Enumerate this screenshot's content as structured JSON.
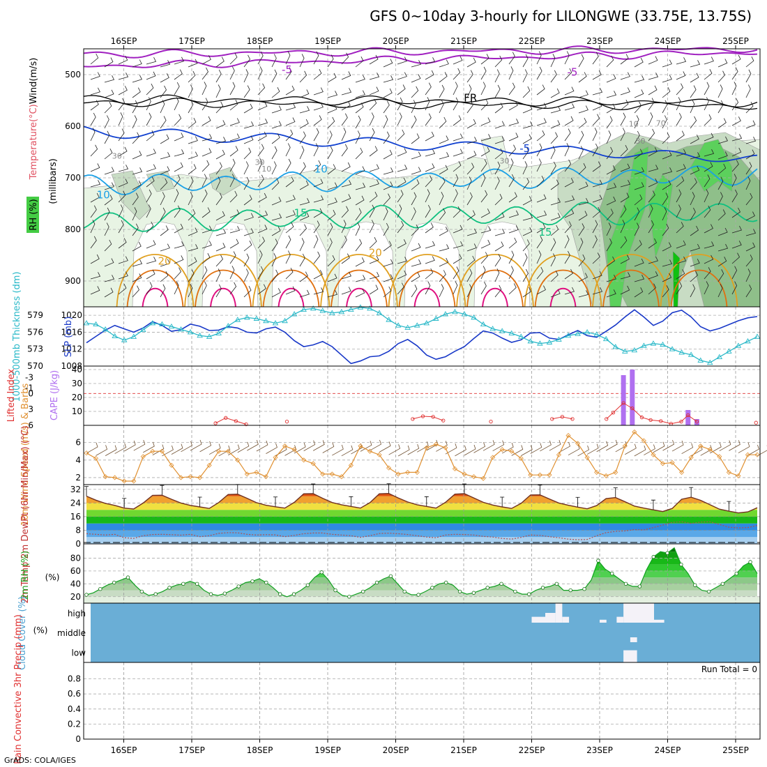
{
  "title": "GFS 0~10day 3-hourly for LILONGWE (33.75E, 13.75S)",
  "footer": "GrADS: COLA/IGES",
  "run_total_label": "Run Total = 0",
  "colors": {
    "purple": "#a020c0",
    "black": "#000000",
    "blue": "#1040d0",
    "lightblue": "#1aa0e6",
    "green": "#10c080",
    "orange": "#e0a020",
    "darkorange": "#e07010",
    "magenta": "#e01080",
    "cyan": "#28b8c8",
    "slp": "#1838c8",
    "cape": "#b070f0",
    "li": "#e03030",
    "windline": "#e09030",
    "barb": "#705030",
    "rhgreen": "#20c020",
    "cloudbg": "#6aaed6"
  },
  "chart_data": [
    {
      "type": "contour",
      "id": "upper-air",
      "xlabel_dates": [
        "16SEP",
        "17SEP",
        "18SEP",
        "19SEP",
        "20SEP",
        "21SEP",
        "22SEP",
        "23SEP",
        "24SEP",
        "25SEP"
      ],
      "ylabel": "(millibars)",
      "ylabel_left": [
        "Temperature",
        "(°C)",
        "Wind",
        "(m/s)"
      ],
      "rh_label": "RH (%)",
      "yticks": [
        500,
        600,
        700,
        800,
        900
      ],
      "ylim": [
        450,
        950
      ],
      "contour_labels": [
        {
          "text": "-5",
          "day": 2.4,
          "p": 497,
          "color": "purple"
        },
        {
          "text": "-5",
          "day": 6.6,
          "p": 502,
          "color": "purple"
        },
        {
          "text": "FR",
          "day": 5.1,
          "p": 552,
          "color": "black"
        },
        {
          "text": "-5",
          "day": 5.9,
          "p": 650,
          "color": "blue"
        },
        {
          "text": "10",
          "day": -0.3,
          "p": 740,
          "color": "lightblue"
        },
        {
          "text": "10",
          "day": 2.9,
          "p": 690,
          "color": "lightblue"
        },
        {
          "text": "15",
          "day": 2.6,
          "p": 775,
          "color": "green"
        },
        {
          "text": "15",
          "day": 6.2,
          "p": 812,
          "color": "green"
        },
        {
          "text": "20",
          "day": 0.6,
          "p": 868,
          "color": "orange"
        },
        {
          "text": "20",
          "day": 3.7,
          "p": 852,
          "color": "orange"
        },
        {
          "text": "30",
          "day": -0.1,
          "p": 663,
          "color": "gray"
        },
        {
          "text": "10",
          "day": 2.1,
          "p": 688,
          "color": "gray"
        },
        {
          "text": "30",
          "day": 2.0,
          "p": 675,
          "color": "gray"
        },
        {
          "text": "30",
          "day": 5.6,
          "p": 672,
          "color": "gray"
        },
        {
          "text": "10",
          "day": 7.5,
          "p": 601,
          "color": "gray"
        },
        {
          "text": "30",
          "day": 7.6,
          "p": 634,
          "color": "gray"
        },
        {
          "text": "70",
          "day": 7.9,
          "p": 599,
          "color": "gray"
        }
      ]
    },
    {
      "type": "line",
      "id": "thickness-slp",
      "ylabel_left": "1000-500mb Thickness (dm)",
      "ylabel_right": "SLP (mb)",
      "thickness_ticks": [
        570,
        573,
        576,
        579
      ],
      "slp_ticks": [
        1008,
        1012,
        1016,
        1020
      ],
      "thickness_lim": [
        570,
        580.5
      ],
      "slp_lim": [
        1008,
        1022
      ],
      "slp": [
        1013.5,
        1015,
        1016.5,
        1017.6,
        1016.8,
        1016,
        1017,
        1018.5,
        1017.6,
        1016.2,
        1016.6,
        1017.9,
        1017.4,
        1016.4,
        1016.5,
        1017.3,
        1017,
        1016,
        1015.8,
        1016.8,
        1017.2,
        1016,
        1014,
        1012.6,
        1013,
        1013.8,
        1012.6,
        1010.6,
        1008.6,
        1009.2,
        1010.2,
        1010.4,
        1011.5,
        1013.3,
        1014.3,
        1012.8,
        1010.6,
        1009.6,
        1010.2,
        1011.5,
        1012.6,
        1014.5,
        1016.3,
        1015.8,
        1014.6,
        1013.6,
        1014.2,
        1015.8,
        1015.9,
        1014.6,
        1014.3,
        1015.4,
        1016.4,
        1015.2,
        1014.8,
        1016.2,
        1017.7,
        1019.6,
        1021.3,
        1019.6,
        1017.6,
        1018.6,
        1020.6,
        1021.2,
        1019.6,
        1017.3,
        1016.3,
        1016.9,
        1017.8,
        1018.7,
        1019.4,
        1019.7
      ],
      "thickness": [
        577.6,
        577.4,
        576.5,
        575.3,
        574.6,
        575.2,
        576.4,
        577.6,
        577.4,
        577,
        576.5,
        576,
        575.4,
        575.2,
        575.8,
        577.1,
        578.2,
        578.6,
        578.4,
        578,
        577.6,
        578,
        579.2,
        580,
        580.2,
        579.8,
        579.4,
        579.6,
        580,
        580.4,
        580.2,
        579.4,
        578.2,
        577.2,
        576.8,
        577.2,
        577.6,
        578.4,
        579.2,
        579.6,
        579.2,
        578.6,
        577.4,
        576.6,
        576.2,
        575.8,
        575.2,
        574.4,
        574,
        574.2,
        574.7,
        575.4,
        575.7,
        576,
        575.6,
        574.8,
        573.4,
        572.6,
        572.8,
        573.6,
        574,
        573.8,
        573,
        572.4,
        572,
        571,
        570.6,
        571.6,
        572.6,
        573.6,
        574.4,
        575.2
      ]
    },
    {
      "type": "bar",
      "id": "cape-li",
      "ylabel_left": "Lifted Index",
      "ylabel_right": "CAPE (J/kg)",
      "li_ticks": [
        "-3",
        "-1",
        "0",
        "3",
        "6"
      ],
      "cape_ticks": [
        10,
        20,
        30,
        40
      ],
      "cape_lim": [
        0,
        40
      ],
      "li_lim": [
        -4.5,
        6
      ],
      "li_zero_line": 0,
      "cape_bars": [
        {
          "day": 7.35,
          "value": 36
        },
        {
          "day": 7.48,
          "value": 40
        },
        {
          "day": 8.3,
          "value": 11
        },
        {
          "day": 8.43,
          "value": 4.5
        }
      ],
      "li_points": [
        {
          "day": 1.35,
          "value": 5.6
        },
        {
          "day": 1.5,
          "value": 4.6
        },
        {
          "day": 1.65,
          "value": 5.2
        },
        {
          "day": 1.8,
          "value": 5.8
        },
        {
          "day": 2.4,
          "value": 5.3
        },
        {
          "day": 4.25,
          "value": 4.8
        },
        {
          "day": 4.4,
          "value": 4.3
        },
        {
          "day": 4.55,
          "value": 4.4
        },
        {
          "day": 4.7,
          "value": 5.1
        },
        {
          "day": 5.4,
          "value": 5.3
        },
        {
          "day": 6.3,
          "value": 4.8
        },
        {
          "day": 6.45,
          "value": 4.4
        },
        {
          "day": 6.6,
          "value": 4.8
        },
        {
          "day": 7.1,
          "value": 4.8
        },
        {
          "day": 7.2,
          "value": 3.6
        },
        {
          "day": 7.35,
          "value": 1.8
        },
        {
          "day": 7.48,
          "value": 2.8
        },
        {
          "day": 7.62,
          "value": 4.5
        },
        {
          "day": 7.75,
          "value": 5
        },
        {
          "day": 7.9,
          "value": 5.2
        },
        {
          "day": 8.05,
          "value": 5.7
        },
        {
          "day": 8.2,
          "value": 5.3
        },
        {
          "day": 8.3,
          "value": 4.1
        },
        {
          "day": 8.43,
          "value": 5.3
        },
        {
          "day": 9.3,
          "value": 5.5
        }
      ]
    },
    {
      "type": "line",
      "id": "wind10m",
      "ylabel_left": "10m Wind Speed (m/s) & Barbs",
      "yticks": [
        2,
        4,
        6
      ],
      "ylim": [
        1.2,
        7.8
      ],
      "speed": [
        4.8,
        4.2,
        2.1,
        2.0,
        1.6,
        1.6,
        4.4,
        5,
        5,
        3.4,
        2,
        2.1,
        2,
        3.4,
        5,
        5,
        4,
        2.4,
        2.6,
        2.1,
        4.3,
        5.6,
        5.2,
        4,
        3.6,
        2.4,
        2.4,
        2.1,
        3.4,
        5.6,
        5,
        4.6,
        3.1,
        2.4,
        2.6,
        2.6,
        5.4,
        5.8,
        5.4,
        3,
        2.4,
        2.1,
        1.9,
        4.3,
        5.2,
        5,
        4.2,
        2.3,
        2.3,
        2.3,
        4.6,
        6.8,
        5.9,
        4.3,
        2.6,
        2.2,
        2.6,
        5.6,
        7.2,
        6.2,
        4.6,
        3.6,
        3.7,
        2.6,
        4.3,
        5.6,
        5.2,
        4.4,
        2.6,
        2.2,
        4.6,
        4.6
      ]
    },
    {
      "type": "area",
      "id": "temp2m",
      "ylabel_left": "2m Temp 2m DewPt (6hr Min/Max) (°C)",
      "yticks": [
        0,
        8,
        16,
        24,
        32
      ],
      "ylim": [
        0,
        34
      ],
      "temp": [
        28,
        25.7,
        23.8,
        22.6,
        21,
        20.5,
        24,
        28.5,
        28.6,
        26.2,
        24,
        22.6,
        21.7,
        20.8,
        24.3,
        29,
        29.2,
        26.8,
        24.2,
        22.7,
        21.8,
        21,
        24.4,
        29.4,
        29.5,
        26.8,
        24.3,
        23,
        22,
        21,
        24.2,
        29.4,
        29.6,
        27,
        24.6,
        23,
        22,
        21,
        24.4,
        29.2,
        29.5,
        27,
        24.4,
        22.8,
        21.7,
        20.8,
        23.8,
        28.7,
        28.8,
        26.4,
        24,
        22.7,
        21.6,
        20.6,
        22.5,
        26.6,
        27.2,
        24.8,
        22.2,
        21,
        20,
        19,
        20.8,
        26.2,
        27.4,
        25.6,
        23,
        20.4,
        19.2,
        18.2,
        18.8,
        21.2
      ],
      "dew": [
        6,
        5.6,
        5.2,
        5.6,
        3.6,
        3.2,
        4.8,
        5.5,
        5.6,
        5.4,
        5.1,
        5.6,
        4.2,
        4.8,
        6.2,
        6.6,
        6.5,
        5.6,
        5.2,
        5.4,
        5.3,
        4.2,
        5,
        6,
        6.4,
        6.4,
        5.6,
        5.2,
        4.8,
        3.8,
        4.8,
        6.1,
        6.3,
        6,
        5.5,
        4.8,
        4,
        3.6,
        5.2,
        5.6,
        5.5,
        5.2,
        4.4,
        4,
        3.2,
        2.8,
        3.8,
        5.2,
        5,
        4.2,
        3.6,
        2.8,
        2.4,
        2.6,
        4.8,
        6.6,
        7.3,
        7.6,
        8.4,
        8.2,
        9.6,
        11,
        12.6,
        13,
        12,
        12.8,
        13,
        11.4,
        9.8,
        9.4,
        9.6,
        10.8
      ]
    },
    {
      "type": "area",
      "id": "rh2m",
      "ylabel_left": "2m RH (%)",
      "yticks": [
        20,
        40,
        60,
        80
      ],
      "ylim": [
        10,
        100
      ],
      "rh": [
        23,
        26,
        32,
        38,
        42,
        46,
        50,
        38,
        28,
        22,
        24,
        28,
        34,
        38,
        40,
        44,
        40,
        30,
        24,
        22,
        25,
        30,
        36,
        42,
        44,
        48,
        42,
        34,
        24,
        20,
        24,
        30,
        38,
        50,
        58,
        46,
        30,
        22,
        20,
        24,
        28,
        34,
        42,
        48,
        52,
        40,
        28,
        23,
        23,
        28,
        34,
        40,
        42,
        38,
        28,
        24,
        26,
        30,
        34,
        36,
        40,
        34,
        28,
        24,
        24,
        30,
        34,
        36,
        40,
        30,
        30,
        30,
        32,
        46,
        76,
        63,
        56,
        48,
        40,
        36,
        36,
        62,
        82,
        90,
        88,
        96,
        70,
        56,
        38,
        30,
        28,
        34,
        40,
        48,
        56,
        68,
        74,
        56
      ],
      "rh_daily_peaks_note": ""
    },
    {
      "type": "heatmap",
      "id": "cloud",
      "ylabel_left": "Cloud Cover (%)",
      "levels": [
        "high",
        "middle",
        "low"
      ],
      "blocks": [
        {
          "level": "high",
          "d0": 6.0,
          "d1": 6.2,
          "frac": 0.3
        },
        {
          "level": "high",
          "d0": 6.2,
          "d1": 6.35,
          "frac": 0.5
        },
        {
          "level": "high",
          "d0": 6.35,
          "d1": 6.45,
          "frac": 1
        },
        {
          "level": "high",
          "d0": 6.45,
          "d1": 6.55,
          "frac": 0.3
        },
        {
          "level": "high",
          "d0": 7.0,
          "d1": 7.1,
          "frac": 0.15
        },
        {
          "level": "high",
          "d0": 7.25,
          "d1": 7.35,
          "frac": 0.3
        },
        {
          "level": "high",
          "d0": 7.35,
          "d1": 7.8,
          "frac": 1
        },
        {
          "level": "high",
          "d0": 7.8,
          "d1": 7.95,
          "frac": 0.15
        },
        {
          "level": "middle",
          "d0": 7.45,
          "d1": 7.55,
          "frac": 0.25
        },
        {
          "level": "low",
          "d0": 7.35,
          "d1": 7.55,
          "frac": 0.6
        }
      ]
    },
    {
      "type": "bar",
      "id": "precip",
      "ylabel_left": "Total / Rain Convective 3hr Precip (mm)",
      "yticks": [
        0,
        0.2,
        0.4,
        0.6,
        0.8
      ],
      "ylim": [
        0,
        1
      ],
      "values": []
    }
  ]
}
